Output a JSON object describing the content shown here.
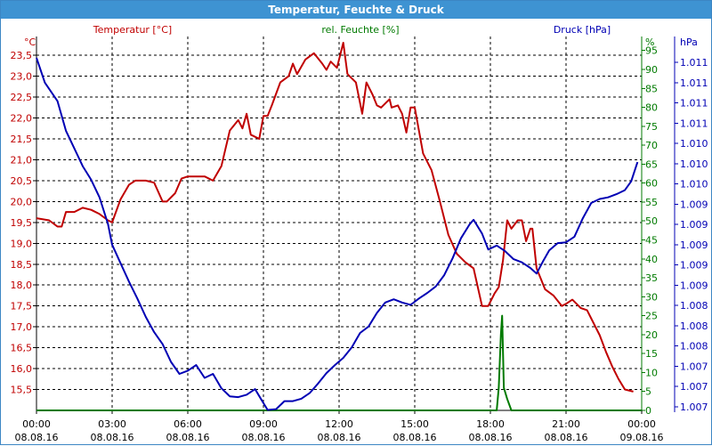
{
  "window": {
    "title": "Temperatur, Feuchte & Druck"
  },
  "colors": {
    "temperature": "#c00000",
    "humidity": "#007a00",
    "pressure": "#0000b4",
    "titlebar": "#3e93d2"
  },
  "chart_data": {
    "type": "line",
    "title": "Temperatur, Feuchte & Druck",
    "grid": true,
    "x": {
      "ticks": [
        {
          "time": "00:00",
          "date": "08.08.16"
        },
        {
          "time": "03:00",
          "date": "08.08.16"
        },
        {
          "time": "06:00",
          "date": "08.08.16"
        },
        {
          "time": "09:00",
          "date": "08.08.16"
        },
        {
          "time": "12:00",
          "date": "08.08.16"
        },
        {
          "time": "15:00",
          "date": "08.08.16"
        },
        {
          "time": "18:00",
          "date": "08.08.16"
        },
        {
          "time": "21:00",
          "date": "08.08.16"
        },
        {
          "time": "00:00",
          "date": "09.08.16"
        }
      ],
      "range": [
        "08.08.16 00:00",
        "09.08.16 00:00"
      ]
    },
    "axes": {
      "temperature": {
        "label": "Temperatur [°C]",
        "unit": "°C",
        "range": [
          15.0,
          23.95
        ],
        "ticks": [
          "15,5",
          "16,0",
          "16,5",
          "17,0",
          "17,5",
          "18,0",
          "18,5",
          "19,0",
          "19,5",
          "20,0",
          "20,5",
          "21,0",
          "21,5",
          "22,0",
          "22,5",
          "23,0",
          "23,5"
        ]
      },
      "humidity": {
        "label": "rel. Feuchte [%]",
        "unit": "%",
        "range": [
          0,
          98.7
        ],
        "ticks": [
          "0",
          "5",
          "10",
          "15",
          "20",
          "25",
          "30",
          "35",
          "40",
          "45",
          "50",
          "55",
          "60",
          "65",
          "70",
          "75",
          "80",
          "85",
          "90",
          "95"
        ]
      },
      "pressure": {
        "label": "Druck [hPa]",
        "unit": "hPa",
        "ticks": [
          "1.007",
          "1.007",
          "1.007",
          "1.008",
          "1.008",
          "1.008",
          "1.009",
          "1.009",
          "1.009",
          "1.009",
          "1.009",
          "1.010",
          "1.010",
          "1.010",
          "1.011",
          "1.011",
          "1.011",
          "1.011"
        ]
      }
    },
    "series": [
      {
        "name": "Temperatur [°C]",
        "axis": "temperature",
        "points": [
          [
            "00:00",
            19.6
          ],
          [
            "00:30",
            19.55
          ],
          [
            "00:50",
            19.4
          ],
          [
            "01:00",
            19.4
          ],
          [
            "01:10",
            19.75
          ],
          [
            "01:30",
            19.75
          ],
          [
            "01:50",
            19.85
          ],
          [
            "02:10",
            19.8
          ],
          [
            "02:30",
            19.7
          ],
          [
            "02:50",
            19.55
          ],
          [
            "03:00",
            19.5
          ],
          [
            "03:20",
            20.05
          ],
          [
            "03:40",
            20.4
          ],
          [
            "03:55",
            20.5
          ],
          [
            "04:20",
            20.5
          ],
          [
            "04:40",
            20.45
          ],
          [
            "05:00",
            20.0
          ],
          [
            "05:10",
            20.0
          ],
          [
            "05:30",
            20.2
          ],
          [
            "05:45",
            20.55
          ],
          [
            "06:00",
            20.6
          ],
          [
            "06:20",
            20.6
          ],
          [
            "06:40",
            20.6
          ],
          [
            "07:00",
            20.5
          ],
          [
            "07:20",
            20.85
          ],
          [
            "07:40",
            21.7
          ],
          [
            "08:00",
            21.95
          ],
          [
            "08:10",
            21.75
          ],
          [
            "08:20",
            22.1
          ],
          [
            "08:30",
            21.6
          ],
          [
            "08:50",
            21.5
          ],
          [
            "09:00",
            22.05
          ],
          [
            "09:10",
            22.05
          ],
          [
            "09:20",
            22.3
          ],
          [
            "09:40",
            22.85
          ],
          [
            "10:00",
            23.0
          ],
          [
            "10:10",
            23.3
          ],
          [
            "10:20",
            23.05
          ],
          [
            "10:40",
            23.4
          ],
          [
            "11:00",
            23.55
          ],
          [
            "11:20",
            23.3
          ],
          [
            "11:30",
            23.15
          ],
          [
            "11:40",
            23.35
          ],
          [
            "11:55",
            23.2
          ],
          [
            "12:10",
            23.8
          ],
          [
            "12:20",
            23.05
          ],
          [
            "12:40",
            22.85
          ],
          [
            "12:55",
            22.1
          ],
          [
            "13:05",
            22.85
          ],
          [
            "13:20",
            22.55
          ],
          [
            "13:30",
            22.3
          ],
          [
            "13:40",
            22.25
          ],
          [
            "14:00",
            22.45
          ],
          [
            "14:05",
            22.25
          ],
          [
            "14:20",
            22.3
          ],
          [
            "14:30",
            22.1
          ],
          [
            "14:40",
            21.65
          ],
          [
            "14:50",
            22.25
          ],
          [
            "15:00",
            22.25
          ],
          [
            "15:20",
            21.15
          ],
          [
            "15:40",
            20.75
          ],
          [
            "16:00",
            20.0
          ],
          [
            "16:20",
            19.2
          ],
          [
            "16:40",
            18.75
          ],
          [
            "17:00",
            18.55
          ],
          [
            "17:20",
            18.4
          ],
          [
            "17:40",
            17.5
          ],
          [
            "17:55",
            17.5
          ],
          [
            "18:10",
            17.8
          ],
          [
            "18:20",
            17.95
          ],
          [
            "18:30",
            18.6
          ],
          [
            "18:40",
            19.55
          ],
          [
            "18:50",
            19.35
          ],
          [
            "19:05",
            19.55
          ],
          [
            "19:15",
            19.55
          ],
          [
            "19:25",
            19.05
          ],
          [
            "19:35",
            19.35
          ],
          [
            "19:40",
            19.35
          ],
          [
            "19:50",
            18.4
          ],
          [
            "20:10",
            17.9
          ],
          [
            "20:30",
            17.75
          ],
          [
            "20:50",
            17.5
          ],
          [
            "21:00",
            17.55
          ],
          [
            "21:15",
            17.65
          ],
          [
            "21:35",
            17.45
          ],
          [
            "21:50",
            17.4
          ],
          [
            "22:05",
            17.1
          ],
          [
            "22:20",
            16.8
          ],
          [
            "22:35",
            16.4
          ],
          [
            "22:50",
            16.05
          ],
          [
            "23:05",
            15.75
          ],
          [
            "23:20",
            15.5
          ],
          [
            "23:40",
            15.45
          ]
        ]
      },
      {
        "name": "rel. Feuchte [%]",
        "axis": "humidity",
        "points": [
          [
            "00:00",
            0
          ],
          [
            "18:15",
            0
          ],
          [
            "18:20",
            6
          ],
          [
            "18:25",
            20
          ],
          [
            "18:28",
            25
          ],
          [
            "18:32",
            6
          ],
          [
            "18:40",
            3
          ],
          [
            "18:50",
            0
          ],
          [
            "24:00",
            0
          ]
        ]
      },
      {
        "name": "Druck [hPa]",
        "axis": "pressure",
        "points": [
          [
            "00:00",
            1.01128
          ],
          [
            "00:20",
            1.01097
          ],
          [
            "00:50",
            1.01074
          ],
          [
            "01:10",
            1.01037
          ],
          [
            "01:30",
            1.01015
          ],
          [
            "01:50",
            1.00993
          ],
          [
            "02:10",
            1.00976
          ],
          [
            "02:30",
            1.00954
          ],
          [
            "02:50",
            1.00921
          ],
          [
            "03:00",
            1.00895
          ],
          [
            "03:20",
            1.00872
          ],
          [
            "03:40",
            1.00849
          ],
          [
            "04:00",
            1.00828
          ],
          [
            "04:20",
            1.00805
          ],
          [
            "04:40",
            1.00786
          ],
          [
            "05:00",
            1.00771
          ],
          [
            "05:20",
            1.00749
          ],
          [
            "05:40",
            1.00734
          ],
          [
            "06:00",
            1.00738
          ],
          [
            "06:20",
            1.00745
          ],
          [
            "06:40",
            1.00729
          ],
          [
            "07:00",
            1.00734
          ],
          [
            "07:20",
            1.00716
          ],
          [
            "07:40",
            1.00706
          ],
          [
            "08:00",
            1.00705
          ],
          [
            "08:20",
            1.00708
          ],
          [
            "08:40",
            1.00715
          ],
          [
            "08:55",
            1.00702
          ],
          [
            "09:10",
            1.00689
          ],
          [
            "09:30",
            1.0069
          ],
          [
            "09:50",
            1.007
          ],
          [
            "10:10",
            1.007
          ],
          [
            "10:30",
            1.00703
          ],
          [
            "10:50",
            1.0071
          ],
          [
            "11:10",
            1.00722
          ],
          [
            "11:30",
            1.00735
          ],
          [
            "11:50",
            1.00745
          ],
          [
            "12:10",
            1.00754
          ],
          [
            "12:30",
            1.00767
          ],
          [
            "12:50",
            1.00785
          ],
          [
            "13:10",
            1.00793
          ],
          [
            "13:30",
            1.0081
          ],
          [
            "13:50",
            1.00823
          ],
          [
            "14:10",
            1.00827
          ],
          [
            "14:30",
            1.00823
          ],
          [
            "14:50",
            1.0082
          ],
          [
            "15:10",
            1.00828
          ],
          [
            "15:30",
            1.00835
          ],
          [
            "15:50",
            1.00843
          ],
          [
            "16:10",
            1.00857
          ],
          [
            "16:30",
            1.00878
          ],
          [
            "16:50",
            1.00903
          ],
          [
            "17:10",
            1.0092
          ],
          [
            "17:20",
            1.00926
          ],
          [
            "17:40",
            1.00909
          ],
          [
            "17:55",
            1.00889
          ],
          [
            "18:15",
            1.00894
          ],
          [
            "18:35",
            1.00887
          ],
          [
            "18:55",
            1.00877
          ],
          [
            "19:15",
            1.00873
          ],
          [
            "19:35",
            1.00866
          ],
          [
            "19:50",
            1.00859
          ],
          [
            "20:05",
            1.00874
          ],
          [
            "20:20",
            1.00888
          ],
          [
            "20:40",
            1.00897
          ],
          [
            "21:00",
            1.00898
          ],
          [
            "21:20",
            1.00905
          ],
          [
            "21:40",
            1.00928
          ],
          [
            "22:00",
            1.00947
          ],
          [
            "22:20",
            1.00952
          ],
          [
            "22:40",
            1.00954
          ],
          [
            "23:00",
            1.00958
          ],
          [
            "23:20",
            1.00963
          ],
          [
            "23:35",
            1.00974
          ],
          [
            "23:50",
            1.00998
          ]
        ]
      }
    ]
  }
}
